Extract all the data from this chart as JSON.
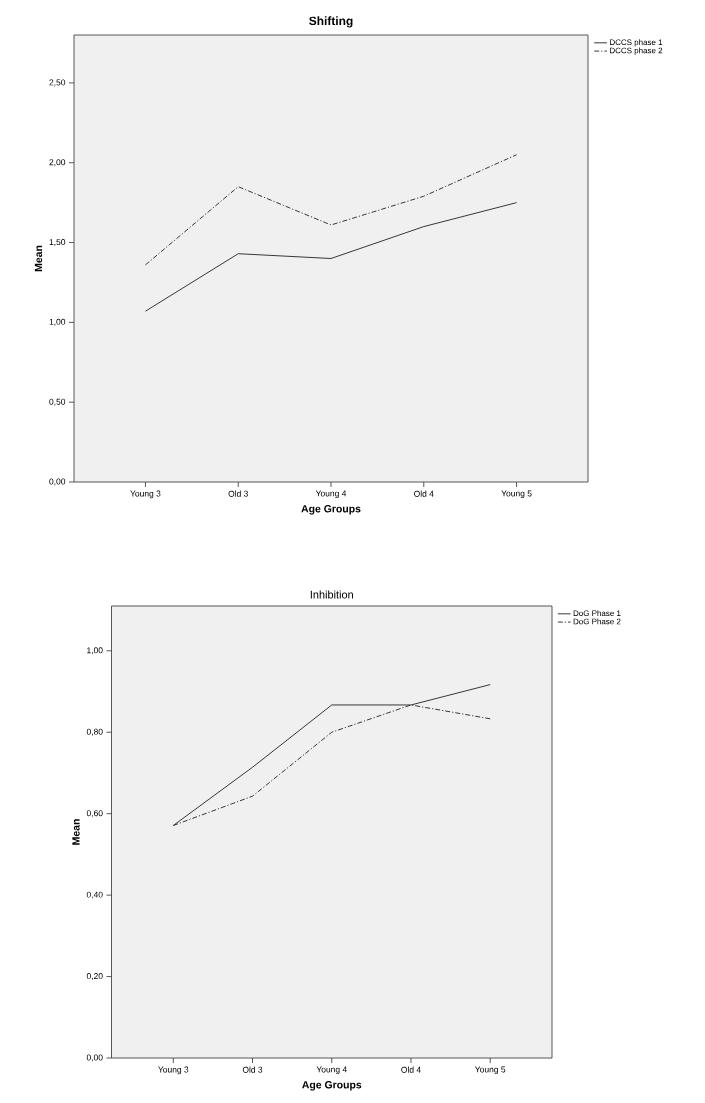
{
  "chart_data": [
    {
      "type": "line",
      "title": "Shifting",
      "xlabel": "Age Groups",
      "ylabel": "Mean",
      "categories": [
        "Young 3",
        "Old 3",
        "Young 4",
        "Old 4",
        "Young 5"
      ],
      "series": [
        {
          "name": "DCCS phase 1",
          "color": "#222222",
          "line_style": "solid",
          "values": [
            1.07,
            1.43,
            1.4,
            1.6,
            1.75
          ]
        },
        {
          "name": "DCCS phase 2",
          "color": "#222222",
          "line_style": "dashdot",
          "values": [
            1.36,
            1.85,
            1.61,
            1.79,
            2.05
          ]
        }
      ],
      "ylim": [
        0,
        2.8
      ],
      "yticks": [
        {
          "value": 0,
          "label": "0,00"
        },
        {
          "value": 0.5,
          "label": "0,50"
        },
        {
          "value": 1.0,
          "label": "1,00"
        },
        {
          "value": 1.5,
          "label": "1,50"
        },
        {
          "value": 2.0,
          "label": "2,00"
        },
        {
          "value": 2.5,
          "label": "2,50"
        }
      ],
      "legend": "top right",
      "grid": false,
      "marker": "none"
    },
    {
      "type": "line",
      "title": "Inhibition",
      "xlabel": "Age Groups",
      "ylabel": "Mean",
      "categories": [
        "Young 3",
        "Old 3",
        "Young 4",
        "Old 4",
        "Young 5"
      ],
      "series": [
        {
          "name": "DoG Phase 1",
          "color": "#222222",
          "line_style": "solid",
          "values": [
            0.571,
            0.714,
            0.867,
            0.867,
            0.917
          ]
        },
        {
          "name": "DoG Phase 2",
          "color": "#222222",
          "line_style": "dashdot",
          "values": [
            0.571,
            0.643,
            0.8,
            0.867,
            0.833
          ]
        }
      ],
      "ylim": [
        0,
        1.11
      ],
      "yticks": [
        {
          "value": 0,
          "label": "0,00"
        },
        {
          "value": 0.2,
          "label": "0,20"
        },
        {
          "value": 0.4,
          "label": "0,40"
        },
        {
          "value": 0.6,
          "label": "0,60"
        },
        {
          "value": 0.8,
          "label": "0,80"
        },
        {
          "value": 1.0,
          "label": "1,00"
        }
      ],
      "legend": "top right",
      "grid": false,
      "marker": "none"
    }
  ]
}
